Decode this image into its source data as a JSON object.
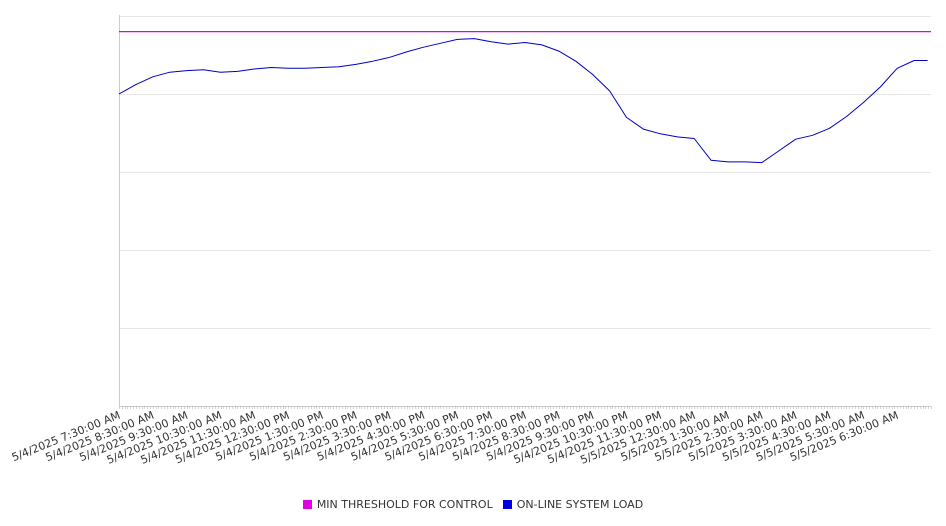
{
  "chart_data": {
    "type": "line",
    "x_labels": [
      "5/4/2025 7:30:00 AM",
      "5/4/2025 8:30:00 AM",
      "5/4/2025 9:30:00 AM",
      "5/4/2025 10:30:00 AM",
      "5/4/2025 11:30:00 AM",
      "5/4/2025 12:30:00 PM",
      "5/4/2025 1:30:00 PM",
      "5/4/2025 2:30:00 PM",
      "5/4/2025 3:30:00 PM",
      "5/4/2025 4:30:00 PM",
      "5/4/2025 5:30:00 PM",
      "5/4/2025 6:30:00 PM",
      "5/4/2025 7:30:00 PM",
      "5/4/2025 8:30:00 PM",
      "5/4/2025 9:30:00 PM",
      "5/4/2025 10:30:00 PM",
      "5/4/2025 11:30:00 PM",
      "5/5/2025 12:30:00 AM",
      "5/5/2025 1:30:00 AM",
      "5/5/2025 2:30:00 AM",
      "5/5/2025 3:30:00 AM",
      "5/5/2025 4:30:00 AM",
      "5/5/2025 5:30:00 AM",
      "5/5/2025 6:30:00 AM"
    ],
    "x_hours": [
      0,
      0.5,
      1,
      1.5,
      2,
      2.5,
      3,
      3.5,
      4,
      4.5,
      5,
      5.5,
      6,
      6.5,
      7,
      7.5,
      8,
      8.5,
      9,
      9.5,
      10,
      10.5,
      11,
      11.5,
      12,
      12.5,
      13,
      13.5,
      14,
      14.5,
      15,
      15.5,
      16,
      16.5,
      17,
      17.5,
      18,
      18.5,
      19,
      19.5,
      20,
      20.5,
      21,
      21.5,
      22,
      22.5,
      23,
      23.5,
      23.9
    ],
    "ylim": [
      0,
      5
    ],
    "grid": true,
    "legend_position": "bottom",
    "series": [
      {
        "name": "MIN THRESHOLD FOR CONTROL",
        "color": "#e000e0",
        "values": [
          4.8,
          4.8
        ]
      },
      {
        "name": "ON-LINE SYSTEM LOAD",
        "color": "#0000c0",
        "values": [
          4.0,
          4.12,
          4.22,
          4.28,
          4.3,
          4.31,
          4.28,
          4.29,
          4.32,
          4.34,
          4.33,
          4.33,
          4.34,
          4.35,
          4.38,
          4.42,
          4.47,
          4.54,
          4.6,
          4.65,
          4.7,
          4.71,
          4.67,
          4.64,
          4.66,
          4.63,
          4.55,
          4.42,
          4.25,
          4.04,
          3.7,
          3.55,
          3.49,
          3.45,
          3.43,
          3.15,
          3.13,
          3.13,
          3.12,
          3.27,
          3.42,
          3.47,
          3.56,
          3.71,
          3.89,
          4.09,
          4.33,
          4.43,
          4.43
        ]
      }
    ]
  }
}
